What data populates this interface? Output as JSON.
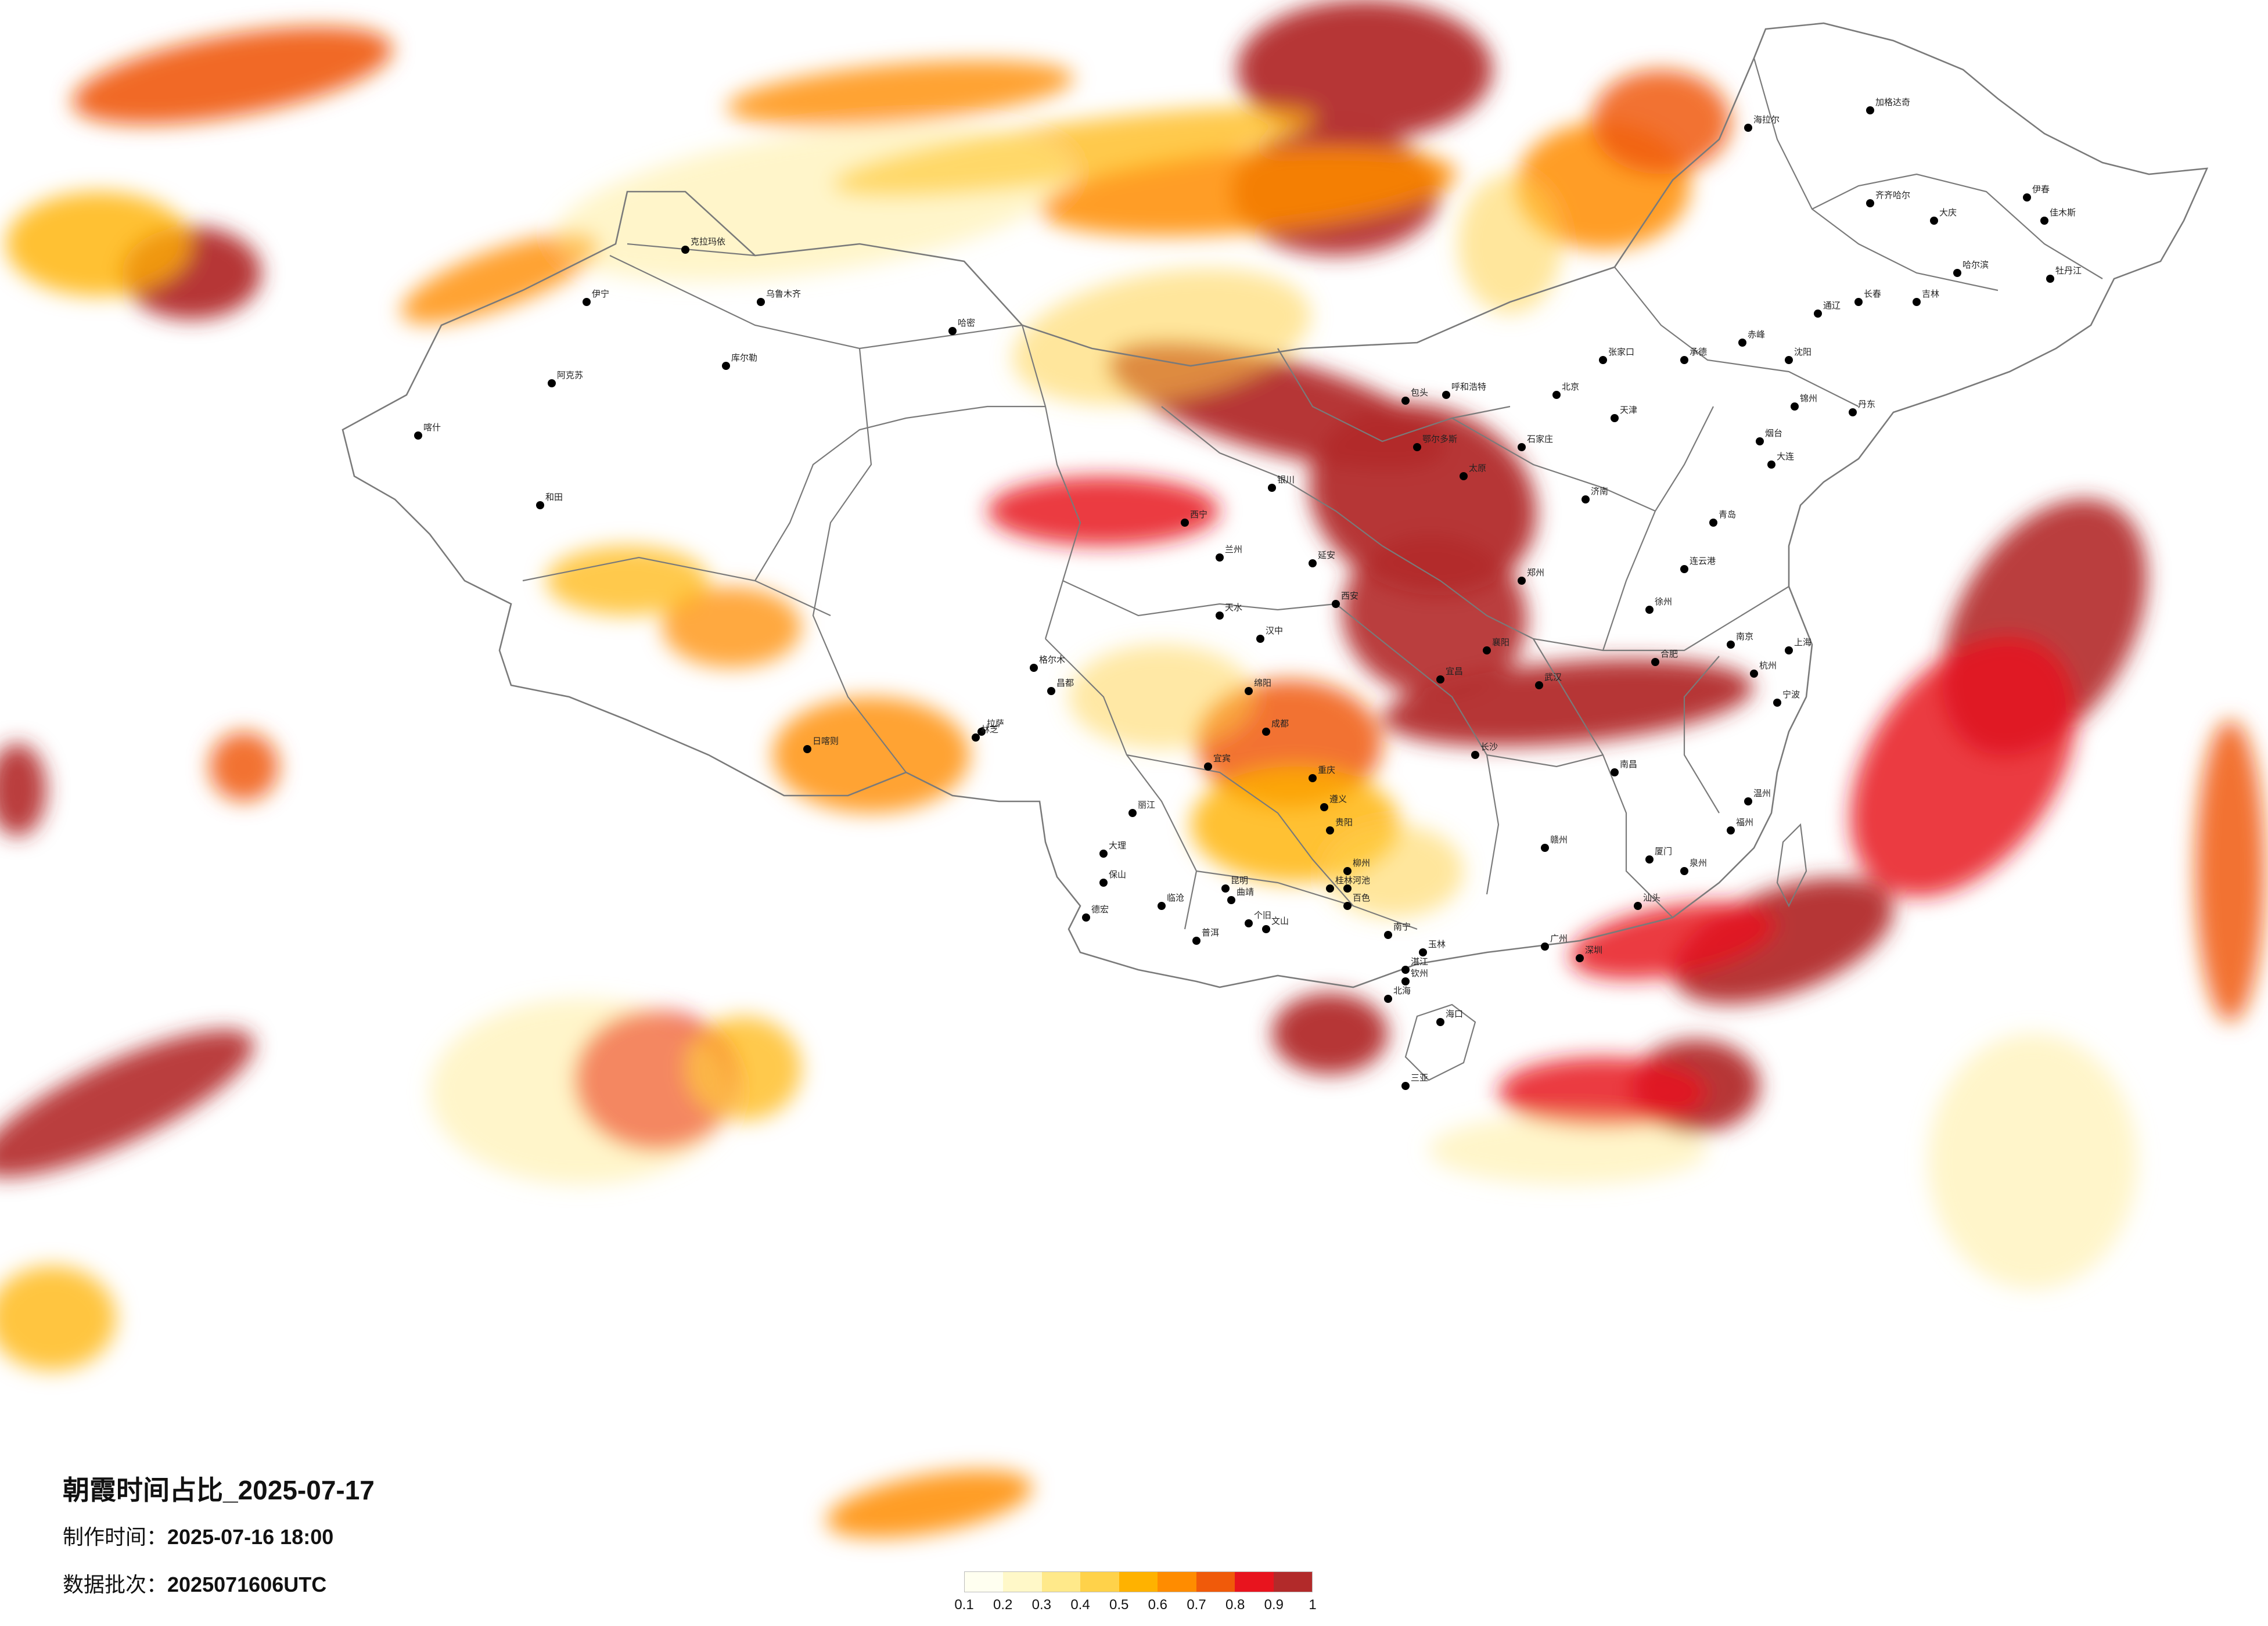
{
  "title": "朝霞时间占比_2025-07-17",
  "made_time": {
    "label": "制作时间：",
    "value": "2025-07-16 18:00"
  },
  "data_batch": {
    "label": "数据批次：",
    "value": "2025071606UTC"
  },
  "legend": {
    "colors": [
      "#fffff0",
      "#fff8c8",
      "#ffe98a",
      "#ffd24a",
      "#ffb200",
      "#ff8c00",
      "#f05a0a",
      "#e8141e",
      "#b22a2a"
    ],
    "ticks": [
      "0.1",
      "0.2",
      "0.3",
      "0.4",
      "0.5",
      "0.6",
      "0.7",
      "0.8",
      "0.9",
      "1"
    ]
  },
  "cities": [
    "乌鲁木齐",
    "克拉玛依",
    "伊宁",
    "阿克苏",
    "库尔勒",
    "哈密",
    "和田",
    "喀什",
    "格尔木",
    "拉萨",
    "日喀则",
    "林芝",
    "昌都",
    "西宁",
    "兰州",
    "银川",
    "呼和浩特",
    "包头",
    "鄂尔多斯",
    "西安",
    "成都",
    "重庆",
    "贵阳",
    "昆明",
    "南宁",
    "海口",
    "广州",
    "深圳",
    "福州",
    "杭州",
    "上海",
    "南京",
    "合肥",
    "武汉",
    "长沙",
    "南昌",
    "郑州",
    "济南",
    "石家庄",
    "太原",
    "北京",
    "天津",
    "沈阳",
    "长春",
    "哈尔滨",
    "齐齐哈尔",
    "加格达奇",
    "海拉尔",
    "伊春",
    "牡丹江",
    "佳木斯",
    "大连",
    "青岛",
    "徐州",
    "温州",
    "厦门",
    "汕头",
    "湛江",
    "三亚",
    "桂林",
    "柳州",
    "遵义",
    "宜宾",
    "绵阳",
    "汉中",
    "延安",
    "天水",
    "张家口",
    "承德",
    "锦州",
    "丹东",
    "赤峰",
    "通辽",
    "大庆",
    "吉林",
    "烟台",
    "连云港",
    "襄阳",
    "宜昌",
    "赣州",
    "泉州",
    "宁波",
    "曲靖",
    "个旧",
    "文山",
    "百色",
    "河池",
    "玉林",
    "钦州",
    "北海",
    "普洱",
    "大理",
    "丽江",
    "临沧",
    "保山",
    "德宏"
  ]
}
